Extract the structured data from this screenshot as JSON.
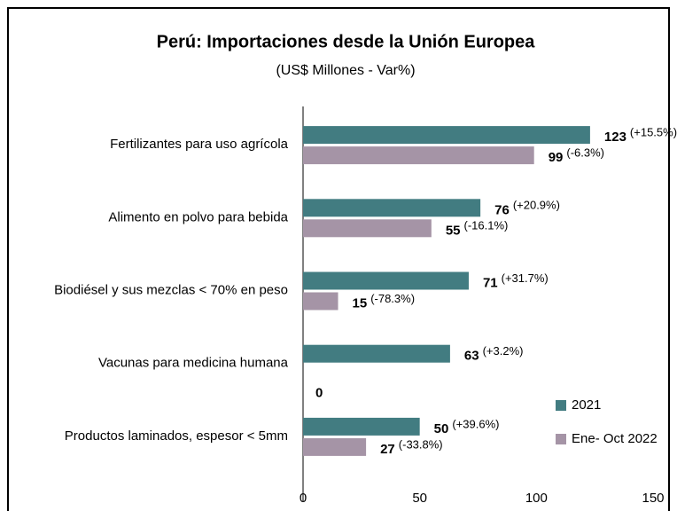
{
  "chart_data": {
    "type": "barh",
    "title": "Perú: Importaciones desde la Unión Europea",
    "subtitle": "(US$ Millones - Var%)",
    "categories": [
      "Fertilizantes para uso agrícola",
      "Alimento en polvo para bebida",
      "Biodiésel y sus mezclas < 70% en peso",
      "Vacunas para medicina humana",
      "Productos laminados, espesor < 5mm"
    ],
    "series": [
      {
        "name": "2021",
        "color": "#427c81",
        "values": [
          123,
          76,
          71,
          63,
          50
        ],
        "changes": [
          "(+15.5%)",
          "(+20.9%)",
          "(+31.7%)",
          "(+3.2%)",
          "(+39.6%)"
        ]
      },
      {
        "name": "Ene- Oct 2022",
        "color": "#a594a6",
        "values": [
          99,
          55,
          15,
          0,
          27
        ],
        "changes": [
          "(-6.3%)",
          "(-16.1%)",
          "(-78.3%)",
          null,
          "(-33.8%)"
        ]
      }
    ],
    "xlim": [
      0,
      150
    ],
    "xticks": [
      0,
      50,
      100,
      150
    ],
    "grid": false,
    "legend": "lower right"
  }
}
